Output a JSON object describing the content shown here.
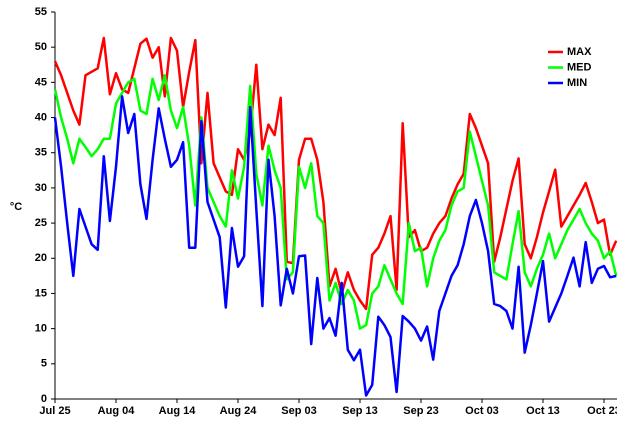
{
  "chart_data": {
    "type": "line",
    "y_label": "°C",
    "categories": [
      "Jul 25",
      null,
      null,
      null,
      null,
      null,
      null,
      null,
      null,
      null,
      "Aug 04",
      null,
      null,
      null,
      null,
      null,
      null,
      null,
      null,
      null,
      "Aug 14",
      null,
      null,
      null,
      null,
      null,
      null,
      null,
      null,
      null,
      "Aug 24",
      null,
      null,
      null,
      null,
      null,
      null,
      null,
      null,
      null,
      "Sep 03",
      null,
      null,
      null,
      null,
      null,
      null,
      null,
      null,
      null,
      "Sep 13",
      null,
      null,
      null,
      null,
      null,
      null,
      null,
      null,
      null,
      "Sep 23",
      null,
      null,
      null,
      null,
      null,
      null,
      null,
      null,
      null,
      "Oct 03",
      null,
      null,
      null,
      null,
      null,
      null,
      null,
      null,
      null,
      "Oct 13",
      null,
      null,
      null,
      null,
      null,
      null,
      null,
      null,
      null,
      "Oct 23",
      null,
      null
    ],
    "ylim": [
      0,
      55
    ],
    "yticks": [
      0,
      5,
      10,
      15,
      20,
      25,
      30,
      35,
      40,
      45,
      50,
      55
    ],
    "grid": false,
    "legend": "top-right",
    "series": [
      {
        "name": "MAX",
        "color": "#ff0000",
        "values": [
          48,
          46,
          43.5,
          41,
          39,
          46,
          46.5,
          47,
          51.3,
          43.3,
          46.3,
          44,
          43.5,
          47,
          50.5,
          51.2,
          48.5,
          50,
          43,
          51.3,
          49.5,
          41.5,
          46.5,
          51,
          33.5,
          43.5,
          33.5,
          31.5,
          29.5,
          29,
          35.5,
          34,
          38,
          47.5,
          35.5,
          39,
          37.5,
          42.8,
          19.5,
          19.3,
          34,
          37,
          37,
          34,
          28,
          16,
          18.5,
          15,
          18,
          15.5,
          14,
          12.8,
          20.5,
          21.5,
          23.5,
          26,
          15.5,
          39.2,
          23,
          24,
          21,
          21.5,
          23.5,
          25,
          26,
          28.5,
          30.5,
          32,
          40.5,
          38.5,
          36,
          33.5,
          19.5,
          23,
          27,
          31,
          34.2,
          22,
          20,
          23,
          26.5,
          29.5,
          32.6,
          24.5,
          26,
          27.5,
          29,
          30.7,
          28,
          25,
          25.5,
          20.5,
          22.5
        ]
      },
      {
        "name": "MED",
        "color": "#00ff00",
        "values": [
          44,
          40,
          37,
          33.5,
          37,
          35.8,
          34.5,
          35.5,
          37,
          37,
          42,
          43.5,
          45,
          45.5,
          41,
          40.5,
          45.5,
          42.5,
          46,
          41,
          38.5,
          41.5,
          36,
          27.5,
          40,
          30,
          28,
          26,
          24.5,
          32.5,
          28.5,
          33,
          44.5,
          32,
          27.5,
          36,
          32.5,
          30,
          17,
          18,
          33,
          30,
          33.5,
          26,
          25,
          14,
          16.5,
          13.5,
          15.5,
          14,
          10,
          10.5,
          15,
          16,
          19,
          17,
          15,
          13.5,
          25,
          21,
          21.5,
          16,
          20,
          22.5,
          24,
          27.5,
          29.5,
          30,
          38,
          34.5,
          31,
          27.5,
          18,
          17.5,
          17,
          22,
          26.7,
          18,
          16,
          18.5,
          20.5,
          23.5,
          20,
          22,
          24,
          25.5,
          27,
          25,
          23.5,
          22.5,
          20,
          21,
          17.5
        ]
      },
      {
        "name": "MIN",
        "color": "#0000ff",
        "values": [
          40,
          33,
          25,
          17.5,
          27,
          24.5,
          22,
          21.2,
          34.5,
          25.3,
          33,
          43,
          37.8,
          40.5,
          30.5,
          25.6,
          34,
          41.3,
          37,
          33,
          34,
          36.5,
          21.5,
          21.5,
          39.5,
          28,
          25.5,
          23,
          13,
          24.3,
          18.8,
          20.3,
          41.5,
          27,
          13.2,
          34,
          26,
          13.3,
          18.5,
          15,
          20.3,
          20.4,
          7.8,
          17.2,
          10,
          11.5,
          9,
          16.5,
          7,
          5.5,
          7,
          0.5,
          2,
          11.7,
          10.5,
          8.8,
          1,
          11.8,
          11,
          10,
          8.3,
          10.3,
          5.6,
          12.5,
          15,
          17.5,
          19,
          22,
          26,
          28.3,
          25,
          21,
          13.5,
          13.2,
          12.5,
          10,
          18.8,
          6.6,
          10.5,
          15,
          19.6,
          11,
          13,
          15,
          17.5,
          20.1,
          16,
          22.3,
          16.5,
          18.5,
          18.9,
          17.3,
          17.5
        ]
      }
    ]
  }
}
